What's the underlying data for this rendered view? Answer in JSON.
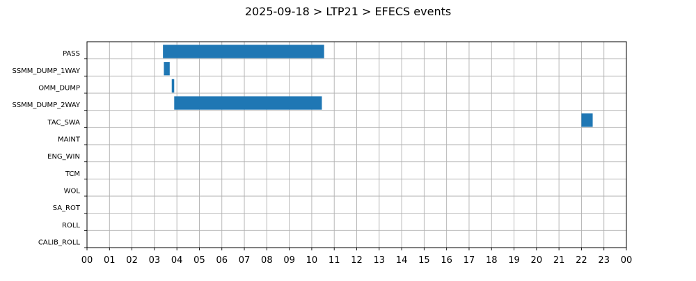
{
  "chart_data": {
    "type": "gantt",
    "title": "2025-09-18 > LTP21 > EFECS events",
    "xlabel": "",
    "ylabel": "",
    "xlim": [
      0,
      24
    ],
    "x_unit": "hours",
    "x_tick_labels": [
      "00",
      "01",
      "02",
      "03",
      "04",
      "05",
      "06",
      "07",
      "08",
      "09",
      "10",
      "11",
      "12",
      "13",
      "14",
      "15",
      "16",
      "17",
      "18",
      "19",
      "20",
      "21",
      "22",
      "23",
      "00"
    ],
    "categories": [
      "PASS",
      "SSMM_DUMP_1WAY",
      "OMM_DUMP",
      "SSMM_DUMP_2WAY",
      "TAC_SWA",
      "MAINT",
      "ENG_WIN",
      "TCM",
      "WOL",
      "SA_ROT",
      "ROLL",
      "CALIB_ROLL"
    ],
    "events": [
      {
        "category": "PASS",
        "start": 3.38,
        "end": 10.55
      },
      {
        "category": "SSMM_DUMP_1WAY",
        "start": 3.42,
        "end": 3.68
      },
      {
        "category": "OMM_DUMP",
        "start": 3.77,
        "end": 3.88
      },
      {
        "category": "SSMM_DUMP_2WAY",
        "start": 3.88,
        "end": 10.45
      },
      {
        "category": "TAC_SWA",
        "start": 22.0,
        "end": 22.5
      }
    ],
    "bar_color": "#1f77b4",
    "grid": true,
    "legend": "none"
  }
}
